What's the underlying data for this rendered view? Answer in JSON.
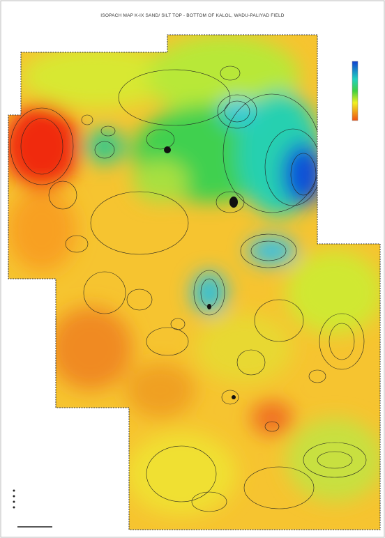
{
  "header": {
    "title": "ISOPACH MAP K-IX SAND/ SILT TOP - BOTTOM OF KALOL, WADU-PALIYAD FIELD"
  }
}
